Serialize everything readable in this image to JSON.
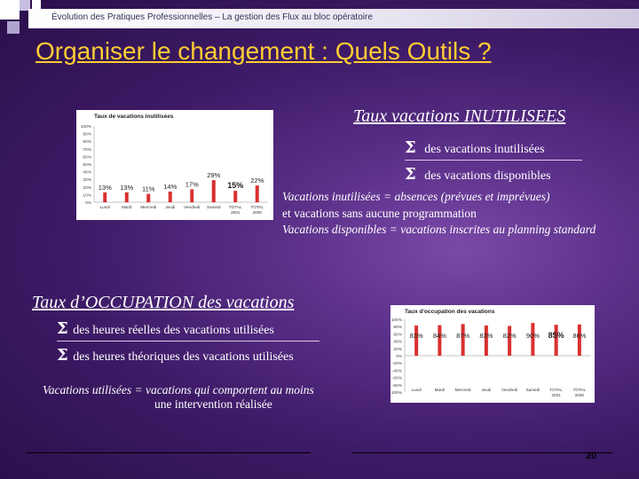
{
  "header": {
    "text": "Évolution des Pratiques Professionnelles – La gestion des Flux au bloc opératoire"
  },
  "title": "Organiser le changement : Quels Outils ?",
  "section_inutilisees": {
    "heading": "Taux vacations INUTILISEES",
    "sigma": "Σ",
    "numerator": "des vacations inutilisées",
    "denominator": "des vacations disponibles",
    "note1": "Vacations inutilisées = absences (prévues et imprévues)",
    "note2": " et vacations sans aucune programmation",
    "note3": "Vacations disponibles = vacations inscrites au planning standard"
  },
  "section_occupation": {
    "heading": "Taux d’OCCUPATION des vacations",
    "sigma": "Σ",
    "numerator": "des heures réelles des vacations utilisées",
    "denominator": "des heures théoriques des vacations utilisées",
    "note1": "Vacations utilisées = vacations qui comportent au moins",
    "note2": "une intervention réalisée"
  },
  "page_number": "20",
  "colors": {
    "title": "#ffcc33",
    "bar": "#d93030",
    "background": "#3d1a66"
  },
  "chart_data": [
    {
      "type": "bar",
      "title": "Taux de vacations inutilisées",
      "categories": [
        "Lundi",
        "Mardi",
        "Mercredi",
        "Jeudi",
        "Vendredi",
        "Samedi",
        "TOTAL 2001",
        "TOTAL 2000"
      ],
      "values": [
        13,
        13,
        11,
        14,
        17,
        29,
        15,
        22
      ],
      "value_labels": [
        "13%",
        "13%",
        "11%",
        "14%",
        "17%",
        "29%",
        "15%",
        "22%"
      ],
      "yticks": [
        "100%",
        "90%",
        "80%",
        "70%",
        "60%",
        "50%",
        "40%",
        "30%",
        "20%",
        "10%",
        "0%"
      ],
      "ylim": [
        0,
        100
      ]
    },
    {
      "type": "bar",
      "title": "Taux d'occupation des vacations",
      "categories": [
        "Lundi",
        "Mardi",
        "Mercredi",
        "Jeudi",
        "Vendredi",
        "Samedi",
        "TOTAL 2001",
        "TOTAL 2000"
      ],
      "values": [
        83,
        84,
        87,
        83,
        82,
        90,
        85,
        86
      ],
      "value_labels": [
        "83%",
        "84%",
        "87%",
        "83%",
        "82%",
        "90%",
        "85%",
        "86%"
      ],
      "yticks": [
        "100%",
        "80%",
        "60%",
        "40%",
        "20%",
        "0%",
        "-20%",
        "-40%",
        "-60%",
        "-80%",
        "-100%"
      ],
      "ylim": [
        -100,
        100
      ]
    }
  ]
}
